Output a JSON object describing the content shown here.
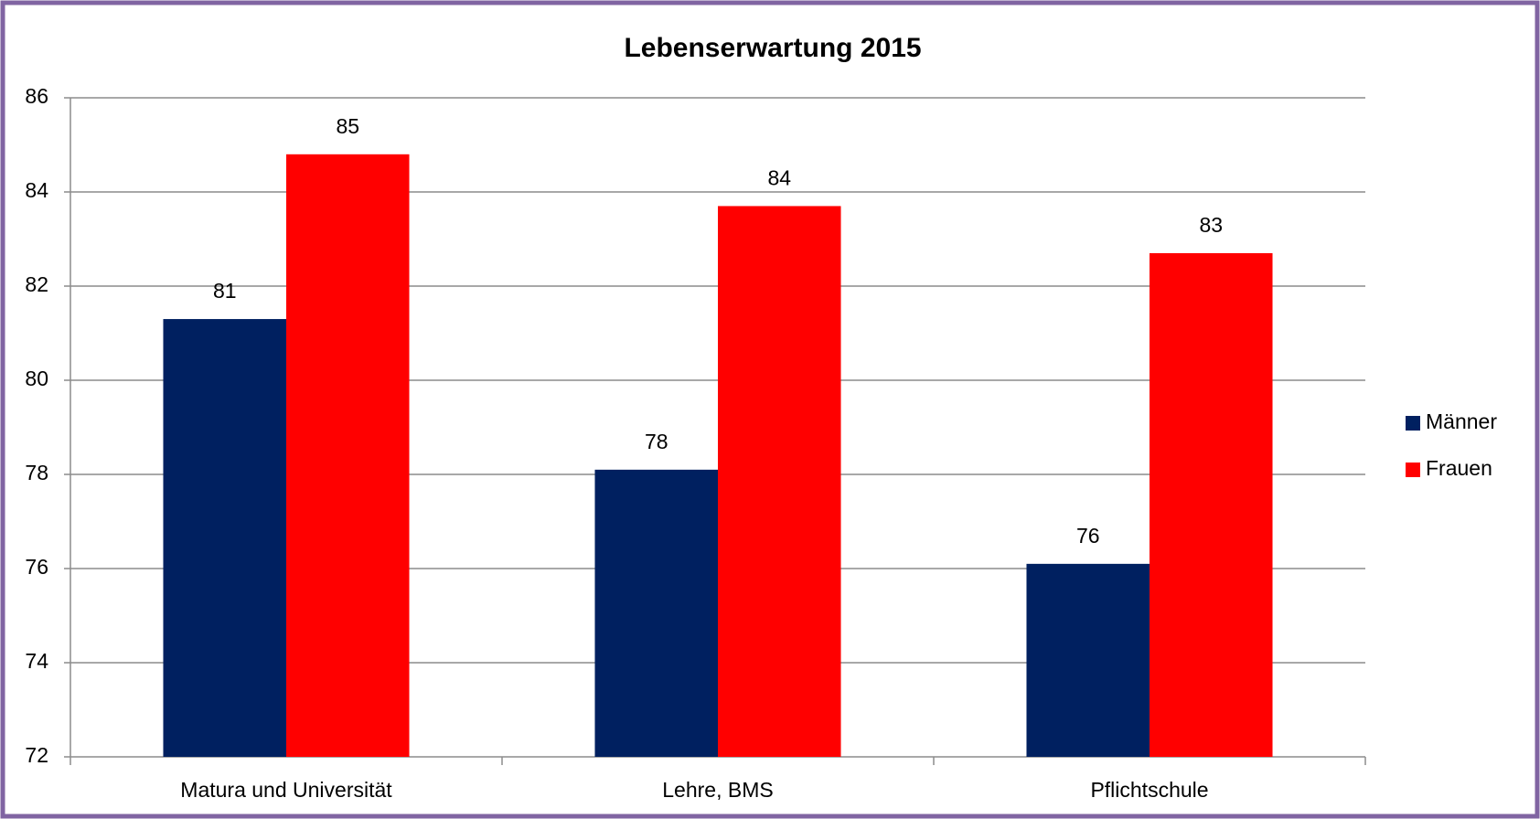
{
  "chart_data": {
    "type": "bar",
    "title": "Lebenserwartung 2015",
    "categories": [
      "Matura und Universität",
      "Lehre, BMS",
      "Pflichtschule"
    ],
    "series": [
      {
        "name": "Männer",
        "color": "#002060",
        "values": [
          81.3,
          78.1,
          76.1
        ],
        "value_labels": [
          "81",
          "78",
          "76"
        ]
      },
      {
        "name": "Frauen",
        "color": "#ff0000",
        "values": [
          84.8,
          83.7,
          82.7
        ],
        "value_labels": [
          "85",
          "84",
          "83"
        ]
      }
    ],
    "ylim": [
      72,
      86
    ],
    "yticks": [
      72,
      74,
      76,
      78,
      80,
      82,
      84,
      86
    ],
    "grid": true,
    "legend": "right"
  }
}
